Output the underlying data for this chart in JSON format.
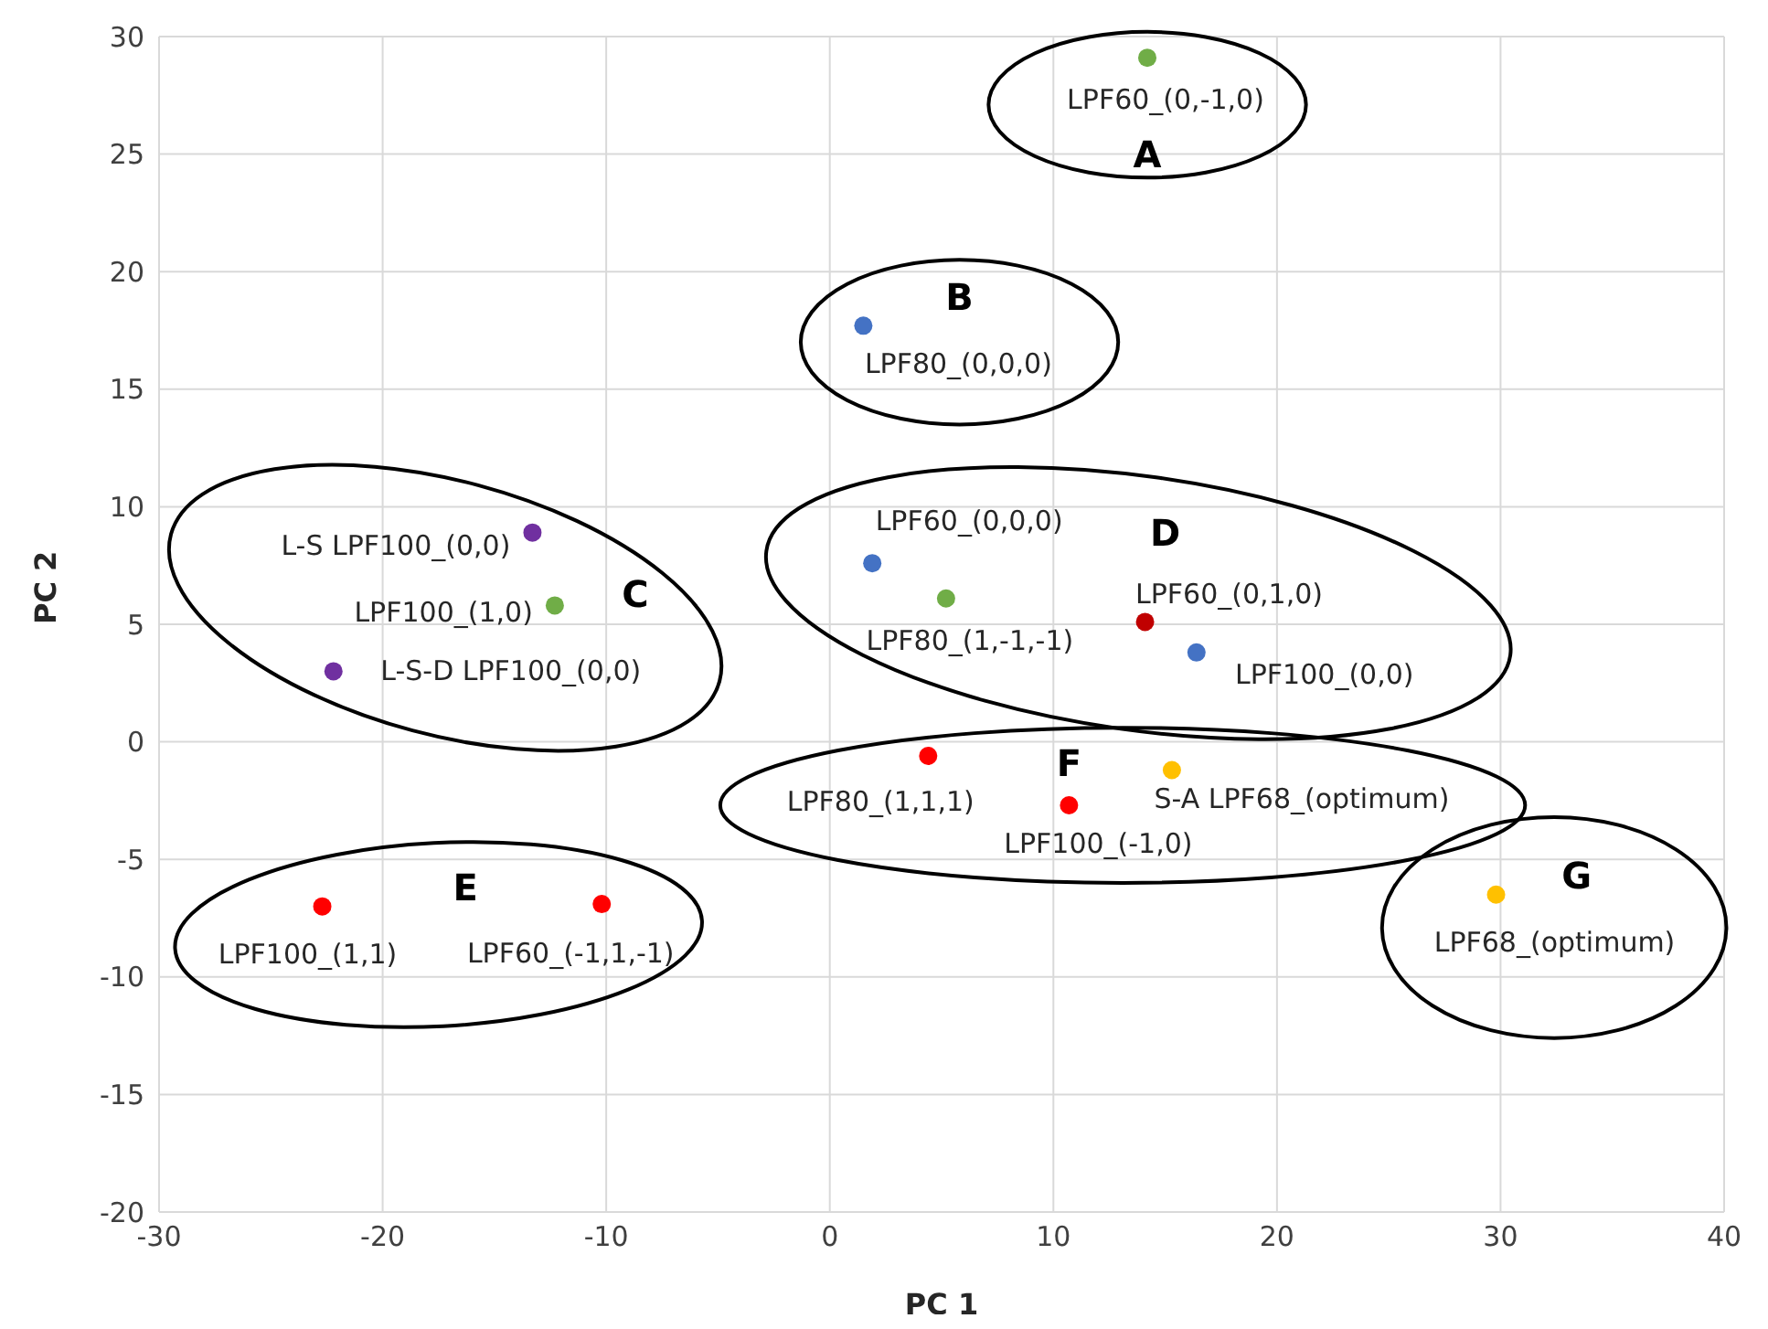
{
  "chart_data": {
    "type": "scatter",
    "xlabel": "PC 1",
    "ylabel": "PC 2",
    "x": [
      14.2,
      1.5,
      -13.3,
      -12.3,
      -22.2,
      1.9,
      5.2,
      14.1,
      16.4,
      4.4,
      10.7,
      15.3,
      29.8,
      -22.7,
      -10.2
    ],
    "values": [
      29.1,
      17.7,
      8.9,
      5.8,
      3.0,
      7.6,
      6.1,
      5.1,
      3.8,
      -0.6,
      -2.7,
      -1.2,
      -6.5,
      -7.0,
      -6.9
    ],
    "colors": [
      "#70ad47",
      "#4472c4",
      "#7030a0",
      "#70ad47",
      "#7030a0",
      "#4472c4",
      "#70ad47",
      "#c00000",
      "#4472c4",
      "#ff0000",
      "#ff0000",
      "#ffc000",
      "#ffc000",
      "#ff0000",
      "#ff0000"
    ],
    "value_labels": [
      "LPF60_(0,-1,0)",
      "LPF80_(0,0,0)",
      "L-S LPF100_(0,0)",
      "LPF100_(1,0)",
      "L-S-D LPF100_(0,0)",
      "LPF60_(0,0,0)",
      "LPF80_(1,-1,-1)",
      "LPF60_(0,1,0)",
      "LPF100_(0,0)",
      "LPF80_(1,1,1)",
      "LPF100_(-1,0)",
      "S-A LPF68_(optimum)",
      "LPF68_(optimum)",
      "LPF100_(1,1)",
      "LPF60_(-1,1,-1)"
    ],
    "annotations": [
      "A",
      "B",
      "C",
      "D",
      "E",
      "F",
      "G"
    ],
    "xlim": [
      -30,
      40
    ],
    "xticks": [
      -30,
      -20,
      -10,
      0,
      10,
      20,
      30,
      40
    ],
    "ylim": [
      -20,
      30
    ],
    "yticks": [
      -20,
      -15,
      -10,
      -5,
      0,
      5,
      10,
      15,
      20,
      25,
      30
    ],
    "grid": true,
    "marker": "circle"
  }
}
